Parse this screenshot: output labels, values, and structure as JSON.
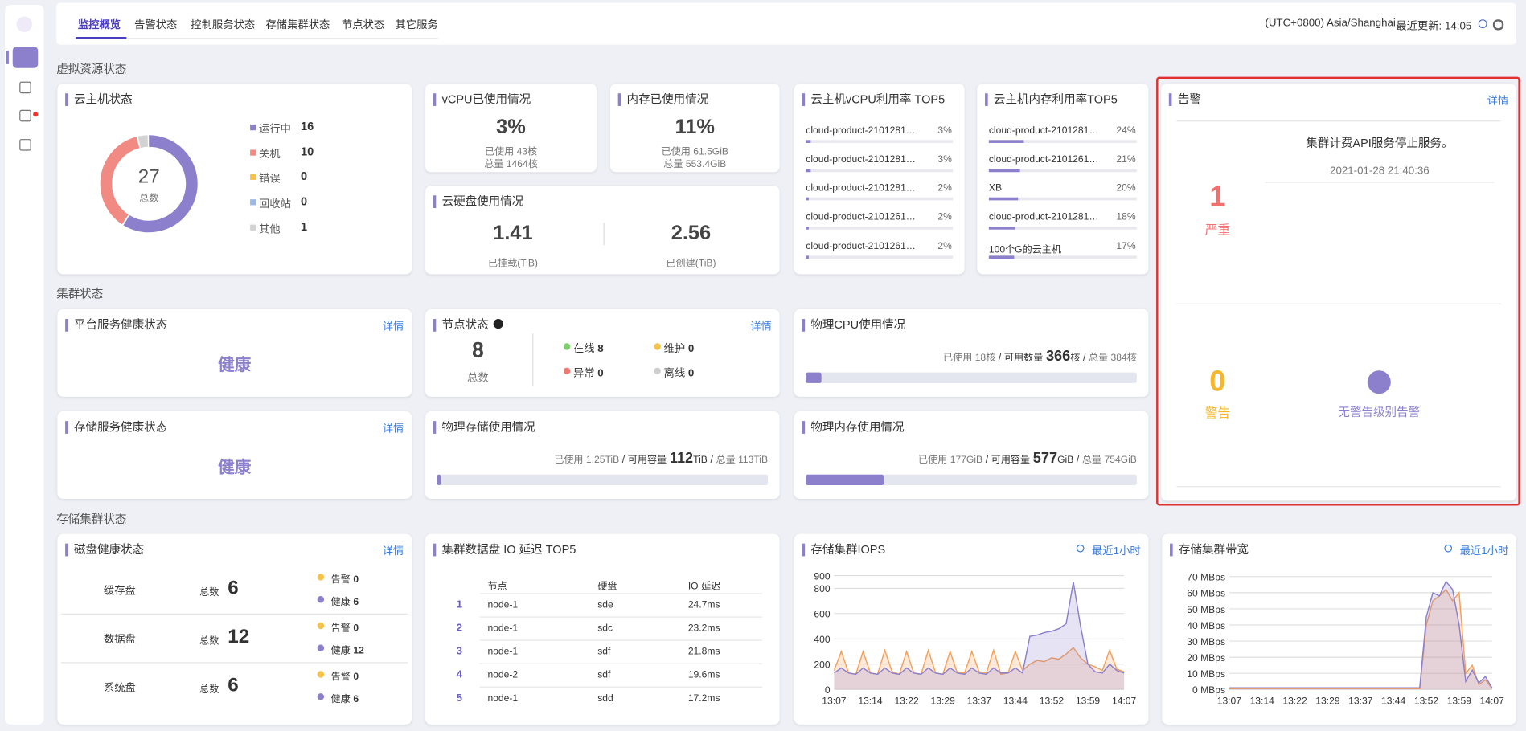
{
  "nav": {
    "tabs": [
      "监控概览",
      "告警状态",
      "控制服务状态",
      "存储集群状态",
      "节点状态",
      "其它服务"
    ],
    "timezone": "(UTC+0800) Asia/Shanghai",
    "last_update": "最近更新: 14:05"
  },
  "sections": {
    "virtual": "虚拟资源状态",
    "cluster": "集群状态",
    "storage": "存储集群状态"
  },
  "detail": "详情",
  "vm_status": {
    "title": "云主机状态",
    "total": 27,
    "total_label": "总数",
    "items": [
      {
        "name": "运行中",
        "value": 16,
        "color": "#8c80cc"
      },
      {
        "name": "关机",
        "value": 10,
        "color": "#f08a82"
      },
      {
        "name": "错误",
        "value": 0,
        "color": "#f7c24a"
      },
      {
        "name": "回收站",
        "value": 0,
        "color": "#9bb8e6"
      },
      {
        "name": "其他",
        "value": 1,
        "color": "#d3d3d3"
      }
    ]
  },
  "vcpu": {
    "title": "vCPU已使用情况",
    "percent": "3%",
    "used": "已使用 43核",
    "total": "总量 1464核"
  },
  "memory": {
    "title": "内存已使用情况",
    "percent": "11%",
    "used": "已使用 61.5GiB",
    "total": "总量 553.4GiB"
  },
  "cloud_disk": {
    "title": "云硬盘使用情况",
    "items": [
      {
        "value": "1.41",
        "label": "已挂载(TiB)"
      },
      {
        "value": "2.56",
        "label": "已创建(TiB)"
      }
    ]
  },
  "vcpu_top5": {
    "title": "云主机vCPU利用率 TOP5",
    "names": [
      "cloud-product-2101281…",
      "cloud-product-2101281…",
      "cloud-product-2101281…",
      "cloud-product-2101261…",
      "cloud-product-2101261…"
    ],
    "values": [
      3,
      3,
      2,
      2,
      2
    ],
    "value_labels": [
      "3%",
      "3%",
      "2%",
      "2%",
      "2%"
    ]
  },
  "mem_top5": {
    "title": "云主机内存利用率TOP5",
    "names": [
      "cloud-product-2101281…",
      "cloud-product-2101261…",
      "XB",
      "cloud-product-2101281…",
      "100个G的云主机"
    ],
    "values": [
      24,
      21,
      20,
      18,
      17
    ],
    "value_labels": [
      "24%",
      "21%",
      "20%",
      "18%",
      "17%"
    ]
  },
  "alarm": {
    "title": "告警",
    "critical": {
      "count": 1,
      "label": "严重",
      "message": "集群计费API服务停止服务。",
      "time": "2021-01-28 21:40:36"
    },
    "warning": {
      "count": 0,
      "label": "警告",
      "message": "无警告级别告警"
    }
  },
  "platform_health": {
    "title": "平台服务健康状态",
    "status": "健康"
  },
  "storage_health": {
    "title": "存储服务健康状态",
    "status": "健康"
  },
  "nodes": {
    "title": "节点状态",
    "total": 8,
    "total_label": "总数",
    "items": [
      {
        "name": "在线",
        "value": 8,
        "color": "#7ccf6a"
      },
      {
        "name": "维护",
        "value": 0,
        "color": "#f7c24a"
      },
      {
        "name": "异常",
        "value": 0,
        "color": "#f07a72"
      },
      {
        "name": "离线",
        "value": 0,
        "color": "#cfcfcf"
      }
    ]
  },
  "physical_cpu": {
    "title": "物理CPU使用情况",
    "used_label": "已使用 18核",
    "separator": "/",
    "available_label": "可用数量",
    "available": 366,
    "available_unit": "核",
    "total_label": "总量 384核",
    "used": 18,
    "total": 384
  },
  "physical_storage": {
    "title": "物理存储使用情况",
    "used_label": "已使用 1.25TiB",
    "separator": "/",
    "available_label": "可用容量",
    "available": 112,
    "available_unit": "TiB",
    "total_label": "总量 113TiB",
    "used": 1.25,
    "total": 113
  },
  "physical_memory": {
    "title": "物理内存使用情况",
    "used_label": "已使用 177GiB",
    "separator": "/",
    "available_label": "可用容量",
    "available": 577,
    "available_unit": "GiB",
    "total_label": "总量 754GiB",
    "used": 177,
    "total": 754
  },
  "disk_health": {
    "title": "磁盘健康状态",
    "total_label": "总数",
    "alarm_label": "告警",
    "healthy_label": "健康",
    "alarm_color": "#f7c24a",
    "healthy_color": "#8c80cc",
    "rows": [
      {
        "name": "缓存盘",
        "total": 6,
        "alarm": 0,
        "healthy": 6
      },
      {
        "name": "数据盘",
        "total": 12,
        "alarm": 0,
        "healthy": 12
      },
      {
        "name": "系统盘",
        "total": 6,
        "alarm": 0,
        "healthy": 6
      }
    ]
  },
  "io_top5": {
    "title": "集群数据盘 IO 延迟 TOP5",
    "columns": [
      "节点",
      "硬盘",
      "IO 延迟"
    ],
    "rows": [
      [
        1,
        "node-1",
        "sde",
        "24.7ms"
      ],
      [
        2,
        "node-1",
        "sdc",
        "23.2ms"
      ],
      [
        3,
        "node-1",
        "sdf",
        "21.8ms"
      ],
      [
        4,
        "node-2",
        "sdf",
        "19.6ms"
      ],
      [
        5,
        "node-1",
        "sdd",
        "17.2ms"
      ]
    ]
  },
  "chart_data": [
    {
      "type": "line",
      "title": "存储集群IOPS",
      "time_range": "最近1小时",
      "categories": [
        "13:07",
        null,
        null,
        null,
        null,
        "13:14",
        null,
        null,
        null,
        null,
        "13:22",
        null,
        null,
        null,
        null,
        "13:29",
        null,
        null,
        null,
        null,
        "13:37",
        null,
        null,
        null,
        null,
        "13:44",
        null,
        null,
        null,
        null,
        "13:52",
        null,
        null,
        null,
        null,
        "13:59",
        null,
        null,
        null,
        null,
        "14:07"
      ],
      "ylim": [
        0,
        900
      ],
      "yticks": [
        0,
        200,
        400,
        600,
        800,
        900
      ],
      "grid": true,
      "series": [
        {
          "color": "#f5a05a",
          "values": [
            150,
            300,
            130,
            120,
            300,
            130,
            120,
            310,
            140,
            120,
            300,
            130,
            120,
            310,
            130,
            120,
            300,
            130,
            130,
            300,
            140,
            130,
            310,
            120,
            130,
            300,
            150,
            200,
            230,
            220,
            250,
            240,
            280,
            330,
            250,
            200,
            180,
            150,
            310,
            160,
            140
          ]
        },
        {
          "color": "#8c80cc",
          "values": [
            130,
            170,
            130,
            120,
            170,
            130,
            120,
            170,
            130,
            120,
            170,
            130,
            120,
            170,
            130,
            120,
            170,
            130,
            120,
            170,
            130,
            120,
            170,
            130,
            130,
            170,
            130,
            420,
            430,
            450,
            460,
            480,
            520,
            850,
            500,
            200,
            140,
            130,
            200,
            150,
            130
          ]
        }
      ]
    },
    {
      "type": "line",
      "title": "存储集群带宽",
      "time_range": "最近1小时",
      "categories": [
        "13:07",
        null,
        null,
        null,
        null,
        "13:14",
        null,
        null,
        null,
        null,
        "13:22",
        null,
        null,
        null,
        null,
        "13:29",
        null,
        null,
        null,
        null,
        "13:37",
        null,
        null,
        null,
        null,
        "13:44",
        null,
        null,
        null,
        null,
        "13:52",
        null,
        null,
        null,
        null,
        "13:59",
        null,
        null,
        null,
        null,
        "14:07"
      ],
      "ylim": [
        0,
        70
      ],
      "yticks": [
        {
          "value": 0,
          "label": "0 MBps"
        },
        {
          "value": 10,
          "label": "10 MBps"
        },
        {
          "value": 20,
          "label": "20 MBps"
        },
        {
          "value": 30,
          "label": "30 MBps"
        },
        {
          "value": 40,
          "label": "40 MBps"
        },
        {
          "value": 50,
          "label": "50 MBps"
        },
        {
          "value": 60,
          "label": "60 MBps"
        },
        {
          "value": 70,
          "label": "70 MBps"
        }
      ],
      "grid": true,
      "series": [
        {
          "color": "#f5a05a",
          "values": [
            0.5,
            0.5,
            0.5,
            0.5,
            0.5,
            0.5,
            0.5,
            0.5,
            0.5,
            0.5,
            0.5,
            0.5,
            0.5,
            0.5,
            0.5,
            0.5,
            0.5,
            0.5,
            0.5,
            0.5,
            0.5,
            0.5,
            0.5,
            0.5,
            0.5,
            0.5,
            0.5,
            0.5,
            0.5,
            0.5,
            40,
            55,
            58,
            62,
            55,
            60,
            10,
            15,
            3,
            6,
            0.5
          ]
        },
        {
          "color": "#8c80cc",
          "values": [
            1,
            1,
            1,
            1,
            1,
            1,
            1,
            1,
            1,
            1,
            1,
            1,
            1,
            1,
            1,
            1,
            1,
            1,
            1,
            1,
            1,
            1,
            1,
            1,
            1,
            1,
            1,
            1,
            1,
            1,
            45,
            60,
            58,
            67,
            62,
            40,
            5,
            12,
            4,
            8,
            1
          ]
        }
      ]
    }
  ]
}
